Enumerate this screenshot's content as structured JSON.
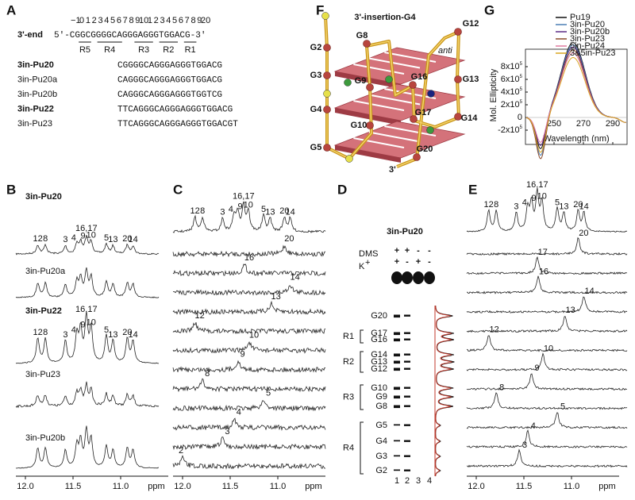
{
  "panel_labels": {
    "A": "A",
    "B": "B",
    "C": "C",
    "D": "D",
    "E": "E",
    "F": "F",
    "G": "G"
  },
  "panel_a": {
    "end_label": "3'-end",
    "numbering": [
      "−1",
      "0",
      "1",
      "2",
      "3",
      "4",
      "5",
      "6",
      "7",
      "8",
      "9",
      "10",
      "1",
      "2",
      "3",
      "4",
      "5",
      "6",
      "7",
      "8",
      "9",
      "20"
    ],
    "sequence": "5'-CGGCGGGGCAGGGAGGGTGGACG-3'",
    "regions": [
      "R5",
      "R4",
      "R3",
      "R2",
      "R1"
    ],
    "constructs": [
      {
        "name": "3in-Pu20",
        "sequence": "CGGGGCAGGGAGGGTGGACG"
      },
      {
        "name": "3in-Pu20a",
        "sequence": "CAGGGCAGGGAGGGTGGACG"
      },
      {
        "name": "3in-Pu20b",
        "sequence": "CAGGGCAGGGAGGGTGGTCG"
      },
      {
        "name": "3in-Pu22",
        "sequence": "TTCAGGGCAGGGAGGGTGGACG"
      },
      {
        "name": "3in-Pu23",
        "sequence": "TTCAGGGCAGGGAGGGTGGACGT"
      }
    ]
  },
  "panel_b": {
    "traces": [
      {
        "name": "3in-Pu20",
        "peaks": [
          "12",
          "8",
          "3",
          "4",
          "9",
          "16,17",
          "10",
          "5",
          "13",
          "20",
          "14"
        ]
      },
      {
        "name": "3in-Pu20a"
      },
      {
        "name": "3in-Pu22",
        "peaks": [
          "12",
          "8",
          "3",
          "4",
          "9",
          "16,17",
          "10",
          "5",
          "13",
          "20",
          "14"
        ]
      },
      {
        "name": "3in-Pu23"
      },
      {
        "name": "3in-Pu20b"
      }
    ],
    "axis_ticks": [
      "12.0",
      "11.5",
      "11.0"
    ],
    "axis_unit": "ppm"
  },
  "panel_c": {
    "top_peaks": [
      "12",
      "8",
      "3",
      "4",
      "9",
      "16,17",
      "10",
      "5",
      "13",
      "20",
      "14"
    ],
    "traces": [
      "20",
      "16",
      "14",
      "13",
      "12",
      "10",
      "9",
      "8",
      "5",
      "4",
      "3",
      "2"
    ],
    "axis_ticks": [
      "12.0",
      "11.5",
      "11.0"
    ],
    "axis_unit": "ppm"
  },
  "panel_d": {
    "title": "3in-Pu20",
    "dms_label": "DMS",
    "k_label": "K",
    "k_charge": "+",
    "dms_row": [
      "+",
      "+",
      "-",
      "-"
    ],
    "k_row": [
      "+",
      "-",
      "+",
      "-"
    ],
    "bands": [
      "G20",
      "G17",
      "G16",
      "G14",
      "G13",
      "G12",
      "G10",
      "G9",
      "G8",
      "G5",
      "G4",
      "G3",
      "G2"
    ],
    "groups": [
      "R1",
      "R2",
      "R3",
      "R4"
    ],
    "lanes": [
      "1",
      "2",
      "3",
      "4"
    ]
  },
  "panel_e": {
    "top_peaks": [
      "12",
      "8",
      "3",
      "4",
      "9",
      "16,17",
      "10",
      "5",
      "13",
      "20",
      "14"
    ],
    "traces": [
      "20",
      "17",
      "16",
      "14",
      "13",
      "12",
      "10",
      "9",
      "8",
      "5",
      "4",
      "3"
    ],
    "axis_ticks": [
      "12.0",
      "11.5",
      "11.0"
    ],
    "axis_unit": "ppm"
  },
  "panel_f": {
    "title": "3'-insertion-G4",
    "nodes": [
      "G2",
      "G8",
      "G12",
      "G3",
      "G9",
      "G16",
      "G13",
      "G4",
      "G10",
      "G17",
      "G14",
      "G5",
      "G20"
    ],
    "annotation": "anti",
    "end_label": "3'"
  },
  "panel_g": {
    "y_label": "Mol. Ellipticity",
    "y_ticks": [
      {
        "base": "8x10",
        "exp": "5"
      },
      {
        "base": "6x10",
        "exp": "5"
      },
      {
        "base": "4x10",
        "exp": "5"
      },
      {
        "base": "2x10",
        "exp": "5"
      },
      {
        "base": "0"
      },
      {
        "base": "-2x10",
        "exp": "5"
      }
    ],
    "x_ticks": [
      "250",
      "270",
      "290"
    ],
    "x_label": "Wavelength (nm)",
    "legend": [
      {
        "name": "Pu19",
        "color": "#111111"
      },
      {
        "name": "3in-Pu20",
        "color": "#4a7eb4"
      },
      {
        "name": "3in-Pu20b",
        "color": "#5b2a86"
      },
      {
        "name": "3in-Pu23",
        "color": "#8b4a2b"
      },
      {
        "name": "5in-Pu24",
        "color": "#e07aa0"
      },
      {
        "name": "3&5in-Pu23",
        "color": "#d9a520"
      }
    ]
  }
}
